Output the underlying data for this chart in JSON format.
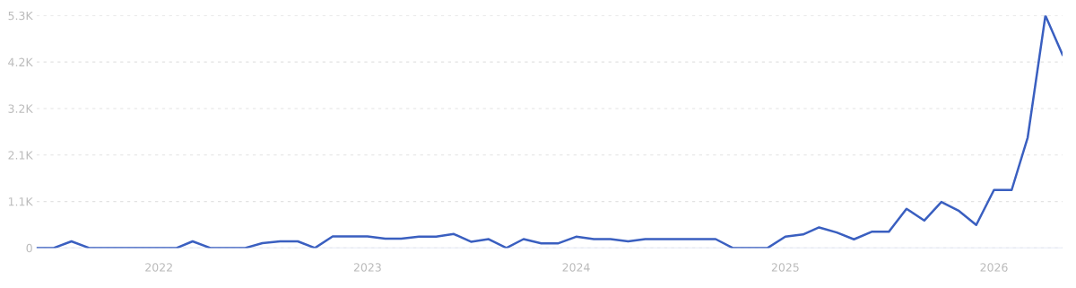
{
  "chart_data": {
    "type": "line",
    "x": [
      "2021-06",
      "2021-07",
      "2021-08",
      "2021-09",
      "2021-10",
      "2021-11",
      "2021-12",
      "2022-01",
      "2022-02",
      "2022-03",
      "2022-04",
      "2022-05",
      "2022-06",
      "2022-07",
      "2022-08",
      "2022-09",
      "2022-10",
      "2022-11",
      "2022-12",
      "2023-01",
      "2023-02",
      "2023-03",
      "2023-04",
      "2023-05",
      "2023-06",
      "2023-07",
      "2023-08",
      "2023-09",
      "2023-10",
      "2023-11",
      "2023-12",
      "2024-01",
      "2024-02",
      "2024-03",
      "2024-04",
      "2024-05",
      "2024-06",
      "2024-07",
      "2024-08",
      "2024-09",
      "2024-10",
      "2024-11",
      "2024-12",
      "2025-01",
      "2025-02",
      "2025-03",
      "2025-04",
      "2025-05",
      "2025-06",
      "2025-07",
      "2025-08",
      "2025-09",
      "2025-10",
      "2025-11",
      "2025-12",
      "2026-01",
      "2026-02",
      "2026-03",
      "2026-04",
      "2026-05"
    ],
    "series": [
      {
        "color": "#3a5fc0",
        "values": [
          0,
          0,
          150,
          0,
          0,
          0,
          0,
          0,
          0,
          150,
          0,
          0,
          0,
          110,
          150,
          150,
          0,
          260,
          260,
          260,
          210,
          210,
          255,
          255,
          315,
          140,
          200,
          0,
          200,
          105,
          105,
          255,
          200,
          200,
          150,
          200,
          200,
          200,
          200,
          200,
          0,
          0,
          0,
          255,
          305,
          465,
          350,
          195,
          365,
          365,
          885,
          620,
          1040,
          835,
          520,
          1310,
          1310,
          2495,
          5250,
          4365
        ]
      }
    ],
    "xlim": [
      "2021-06",
      "2026-05"
    ],
    "xticks": [
      {
        "value": "2022-01",
        "label": "2022"
      },
      {
        "value": "2023-01",
        "label": "2023"
      },
      {
        "value": "2024-01",
        "label": "2024"
      },
      {
        "value": "2025-01",
        "label": "2025"
      },
      {
        "value": "2026-01",
        "label": "2026"
      }
    ],
    "ylim": [
      0,
      5250
    ],
    "yticks": [
      0,
      {
        "value": 1050,
        "label": "1.1K"
      },
      {
        "value": 2100,
        "label": "2.1K"
      },
      {
        "value": 3150,
        "label": "3.2K"
      },
      {
        "value": 4200,
        "label": "4.2K"
      },
      {
        "value": 5250,
        "label": "5.3K"
      }
    ],
    "grid": "y",
    "marker": "none",
    "line_style": "solid"
  }
}
